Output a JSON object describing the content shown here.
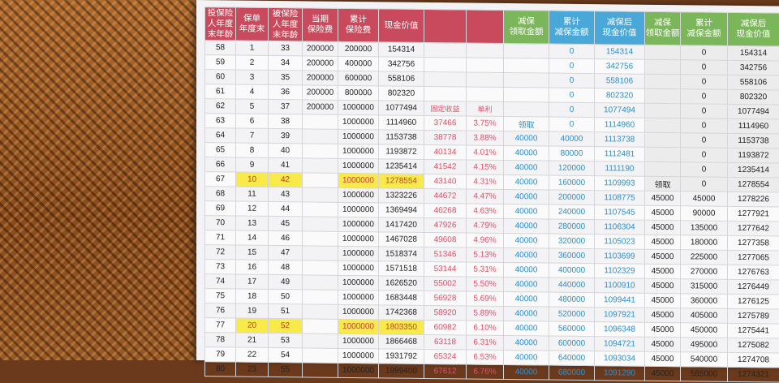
{
  "headers": [
    {
      "label": "投保险\n人年度\n末年龄",
      "color": "red"
    },
    {
      "label": "保单\n年度末",
      "color": "red"
    },
    {
      "label": "被保险\n人年度\n末年龄",
      "color": "red"
    },
    {
      "label": "当期\n保险费",
      "color": "red"
    },
    {
      "label": "累计\n保险费",
      "color": "red"
    },
    {
      "label": "现金价值",
      "color": "red"
    },
    {
      "label": "",
      "color": "red"
    },
    {
      "label": "",
      "color": "red"
    },
    {
      "label": "减保\n领取金额",
      "color": "green"
    },
    {
      "label": "累计\n减保金额",
      "color": "blue"
    },
    {
      "label": "减保后\n现金价值",
      "color": "blue"
    },
    {
      "label": "减保\n领取金额",
      "color": "green"
    },
    {
      "label": "累计\n减保金额",
      "color": "green"
    },
    {
      "label": "减保后\n现金价值",
      "color": "green"
    }
  ],
  "rows": [
    [
      "58",
      "1",
      "33",
      "200000",
      "200000",
      "154314",
      "",
      "",
      "",
      "0",
      "154314",
      "",
      "0",
      "154314"
    ],
    [
      "59",
      "2",
      "34",
      "200000",
      "400000",
      "342756",
      "",
      "",
      "",
      "0",
      "342756",
      "",
      "0",
      "342756"
    ],
    [
      "60",
      "3",
      "35",
      "200000",
      "600000",
      "558106",
      "",
      "",
      "",
      "0",
      "558106",
      "",
      "0",
      "558106"
    ],
    [
      "61",
      "4",
      "36",
      "200000",
      "800000",
      "802320",
      "",
      "",
      "",
      "0",
      "802320",
      "",
      "0",
      "802320"
    ],
    [
      "62",
      "5",
      "37",
      "200000",
      "1000000",
      "1077494",
      "固定收益",
      "单利",
      "",
      "0",
      "1077494",
      "",
      "0",
      "1077494"
    ],
    [
      "63",
      "6",
      "38",
      "",
      "1000000",
      "1114960",
      "37466",
      "3.75%",
      "领取",
      "0",
      "1114960",
      "",
      "0",
      "1114960"
    ],
    [
      "64",
      "7",
      "39",
      "",
      "1000000",
      "1153738",
      "38778",
      "3.88%",
      "40000",
      "40000",
      "1113738",
      "",
      "0",
      "1153738"
    ],
    [
      "65",
      "8",
      "40",
      "",
      "1000000",
      "1193872",
      "40134",
      "4.01%",
      "40000",
      "80000",
      "1112481",
      "",
      "0",
      "1193872"
    ],
    [
      "66",
      "9",
      "41",
      "",
      "1000000",
      "1235414",
      "41542",
      "4.15%",
      "40000",
      "120000",
      "1111190",
      "",
      "0",
      "1235414"
    ],
    [
      "67",
      "10",
      "42",
      "",
      "1000000",
      "1278554",
      "43140",
      "4.31%",
      "40000",
      "160000",
      "1109993",
      "领取",
      "0",
      "1278554"
    ],
    [
      "68",
      "11",
      "43",
      "",
      "1000000",
      "1323226",
      "44672",
      "4.47%",
      "40000",
      "200000",
      "1108775",
      "45000",
      "45000",
      "1278226"
    ],
    [
      "69",
      "12",
      "44",
      "",
      "1000000",
      "1369494",
      "46268",
      "4.63%",
      "40000",
      "240000",
      "1107545",
      "45000",
      "90000",
      "1277921"
    ],
    [
      "70",
      "13",
      "45",
      "",
      "1000000",
      "1417420",
      "47926",
      "4.79%",
      "40000",
      "280000",
      "1106304",
      "45000",
      "135000",
      "1277642"
    ],
    [
      "71",
      "14",
      "46",
      "",
      "1000000",
      "1467028",
      "49608",
      "4.96%",
      "40000",
      "320000",
      "1105023",
      "45000",
      "180000",
      "1277358"
    ],
    [
      "72",
      "15",
      "47",
      "",
      "1000000",
      "1518374",
      "51346",
      "5.13%",
      "40000",
      "360000",
      "1103699",
      "45000",
      "225000",
      "1277065"
    ],
    [
      "73",
      "16",
      "48",
      "",
      "1000000",
      "1571518",
      "53144",
      "5.31%",
      "40000",
      "400000",
      "1102329",
      "45000",
      "270000",
      "1276763"
    ],
    [
      "74",
      "17",
      "49",
      "",
      "1000000",
      "1626520",
      "55002",
      "5.50%",
      "40000",
      "440000",
      "1100910",
      "45000",
      "315000",
      "1276449"
    ],
    [
      "75",
      "18",
      "50",
      "",
      "1000000",
      "1683448",
      "56928",
      "5.69%",
      "40000",
      "480000",
      "1099441",
      "45000",
      "360000",
      "1276125"
    ],
    [
      "76",
      "19",
      "51",
      "",
      "1000000",
      "1742368",
      "58920",
      "5.89%",
      "40000",
      "520000",
      "1097921",
      "45000",
      "405000",
      "1275789"
    ],
    [
      "77",
      "20",
      "52",
      "",
      "1000000",
      "1803350",
      "60982",
      "6.10%",
      "40000",
      "560000",
      "1096348",
      "45000",
      "450000",
      "1275441"
    ],
    [
      "78",
      "21",
      "53",
      "",
      "1000000",
      "1866468",
      "63118",
      "6.31%",
      "40000",
      "600000",
      "1094721",
      "45000",
      "495000",
      "1275082"
    ],
    [
      "79",
      "22",
      "54",
      "",
      "1000000",
      "1931792",
      "65324",
      "6.53%",
      "40000",
      "640000",
      "1093034",
      "45000",
      "540000",
      "1274708"
    ],
    [
      "80",
      "23",
      "55",
      "",
      "1000000",
      "1999400",
      "67612",
      "6.76%",
      "40000",
      "680000",
      "1091290",
      "45000",
      "585000",
      "1274321"
    ]
  ],
  "highlight_rows": [
    9,
    19
  ],
  "colors": {
    "header_red": "#c84a5c",
    "header_green": "#7cb65a",
    "header_blue": "#4aa8d8",
    "highlight": "#f7ea4a",
    "pink_text": "#e0506a",
    "blue_text": "#2c8fd0"
  }
}
